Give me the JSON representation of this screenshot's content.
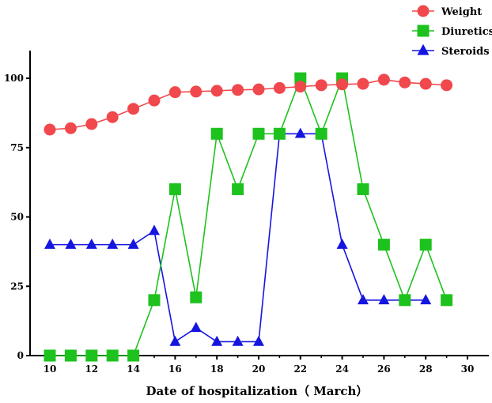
{
  "chart_data": {
    "type": "line",
    "title": "",
    "xlabel": "Date of hospitalization（ March）",
    "ylabel": "",
    "xlim": [
      10,
      30
    ],
    "ylim": [
      0,
      110
    ],
    "x_ticks": [
      10,
      12,
      14,
      16,
      18,
      20,
      22,
      24,
      26,
      28,
      30
    ],
    "x_tick_labels": [
      "10",
      "12",
      "14",
      "16",
      "18",
      "20",
      "22",
      "24",
      "26",
      "28",
      "30"
    ],
    "y_ticks": [
      0,
      25,
      50,
      75,
      100
    ],
    "y_tick_labels": [
      "0",
      "25",
      "50",
      "75",
      "100"
    ],
    "grid": false,
    "legend_position": "top-right",
    "series": [
      {
        "name": "Weight",
        "color": "#f0484c",
        "marker": "circle",
        "x": [
          10,
          11,
          12,
          13,
          14,
          15,
          16,
          17,
          18,
          19,
          20,
          21,
          22,
          23,
          24,
          25,
          26,
          27,
          28,
          29
        ],
        "y": [
          81.5,
          82,
          83.5,
          86,
          89,
          92,
          95,
          95.2,
          95.5,
          95.8,
          96,
          96.5,
          97,
          97.5,
          97.8,
          98,
          99.5,
          98.5,
          98,
          97.5
        ]
      },
      {
        "name": "Diuretics",
        "color": "#1ec21e",
        "marker": "square",
        "x": [
          10,
          11,
          12,
          13,
          14,
          15,
          16,
          17,
          18,
          19,
          20,
          21,
          22,
          23,
          24,
          25,
          26,
          27,
          28,
          29
        ],
        "y": [
          0,
          0,
          0,
          0,
          0,
          20,
          60,
          21,
          80,
          60,
          80,
          80,
          100,
          80,
          100,
          60,
          40,
          20,
          40,
          20
        ]
      },
      {
        "name": "Steroids",
        "color": "#1515e0",
        "marker": "triangle",
        "x": [
          10,
          11,
          12,
          13,
          14,
          15,
          16,
          17,
          18,
          19,
          20,
          21,
          22,
          23,
          24,
          25,
          26,
          27,
          28
        ],
        "y": [
          40,
          40,
          40,
          40,
          40,
          45,
          5,
          10,
          5,
          5,
          5,
          80,
          80,
          80,
          40,
          20,
          20,
          20,
          20
        ]
      }
    ]
  }
}
